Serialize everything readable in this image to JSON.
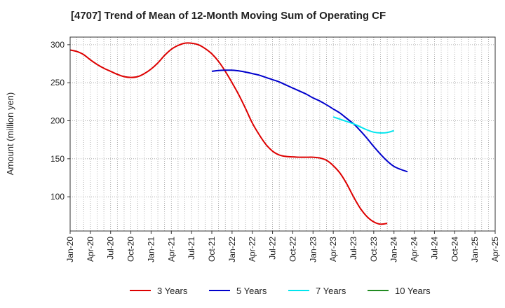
{
  "chart_data": {
    "type": "line",
    "title": "[4707]  Trend of Mean of 12-Month Moving Sum of Operating CF",
    "xlabel": "",
    "ylabel": "Amount (million yen)",
    "ylim": [
      55,
      310
    ],
    "yticks": [
      100,
      150,
      200,
      250,
      300
    ],
    "x_start": "Jan-20",
    "x_end": "Apr-25",
    "x_months": 63,
    "categories": [
      "Jan-20",
      "Apr-20",
      "Jul-20",
      "Oct-20",
      "Jan-21",
      "Apr-21",
      "Jul-21",
      "Oct-21",
      "Jan-22",
      "Apr-22",
      "Jul-22",
      "Oct-22",
      "Jan-23",
      "Apr-23",
      "Jul-23",
      "Oct-23",
      "Jan-24",
      "Apr-24",
      "Jul-24",
      "Oct-24",
      "Jan-25",
      "Apr-25"
    ],
    "grid": true,
    "legend_position": "bottom",
    "series": [
      {
        "name": "3 Years",
        "color": "#dd0000",
        "points": [
          [
            0,
            293
          ],
          [
            1,
            291
          ],
          [
            2,
            287
          ],
          [
            3,
            280
          ],
          [
            4,
            274
          ],
          [
            5,
            269
          ],
          [
            6,
            265
          ],
          [
            7,
            261
          ],
          [
            8,
            258
          ],
          [
            9,
            257
          ],
          [
            10,
            258
          ],
          [
            11,
            262
          ],
          [
            12,
            268
          ],
          [
            13,
            276
          ],
          [
            14,
            286
          ],
          [
            15,
            294
          ],
          [
            16,
            299
          ],
          [
            17,
            302
          ],
          [
            18,
            302
          ],
          [
            19,
            300
          ],
          [
            20,
            295
          ],
          [
            21,
            288
          ],
          [
            22,
            278
          ],
          [
            23,
            265
          ],
          [
            24,
            250
          ],
          [
            25,
            234
          ],
          [
            26,
            216
          ],
          [
            27,
            197
          ],
          [
            28,
            182
          ],
          [
            29,
            169
          ],
          [
            30,
            160
          ],
          [
            31,
            155
          ],
          [
            32,
            153
          ],
          [
            33,
            152.5
          ],
          [
            34,
            152
          ],
          [
            35,
            152
          ],
          [
            36,
            152
          ],
          [
            37,
            151
          ],
          [
            38,
            148
          ],
          [
            39,
            141
          ],
          [
            40,
            131
          ],
          [
            41,
            117
          ],
          [
            42,
            100
          ],
          [
            43,
            85
          ],
          [
            44,
            74
          ],
          [
            45,
            67
          ],
          [
            46,
            64
          ],
          [
            47,
            65
          ]
        ]
      },
      {
        "name": "5 Years",
        "color": "#0000cc",
        "points": [
          [
            21,
            265
          ],
          [
            22,
            266
          ],
          [
            23,
            266.5
          ],
          [
            24,
            266.5
          ],
          [
            25,
            265.5
          ],
          [
            26,
            264
          ],
          [
            27,
            262
          ],
          [
            28,
            260
          ],
          [
            29,
            257
          ],
          [
            30,
            254
          ],
          [
            31,
            251
          ],
          [
            32,
            247
          ],
          [
            33,
            243
          ],
          [
            34,
            239
          ],
          [
            35,
            235
          ],
          [
            36,
            230
          ],
          [
            37,
            226
          ],
          [
            38,
            221
          ],
          [
            39,
            215.5
          ],
          [
            40,
            210
          ],
          [
            41,
            203
          ],
          [
            42,
            196
          ],
          [
            43,
            187
          ],
          [
            44,
            177
          ],
          [
            45,
            166
          ],
          [
            46,
            156
          ],
          [
            47,
            147
          ],
          [
            48,
            140
          ],
          [
            49,
            136
          ],
          [
            50,
            133
          ]
        ]
      },
      {
        "name": "7 Years",
        "color": "#00e5ee",
        "points": [
          [
            39,
            205
          ],
          [
            40,
            202
          ],
          [
            41,
            199
          ],
          [
            42,
            196
          ],
          [
            43,
            192
          ],
          [
            44,
            188
          ],
          [
            45,
            185
          ],
          [
            46,
            184
          ],
          [
            47,
            184.5
          ],
          [
            48,
            187
          ]
        ]
      },
      {
        "name": "10 Years",
        "color": "#228b22",
        "points": []
      }
    ]
  }
}
